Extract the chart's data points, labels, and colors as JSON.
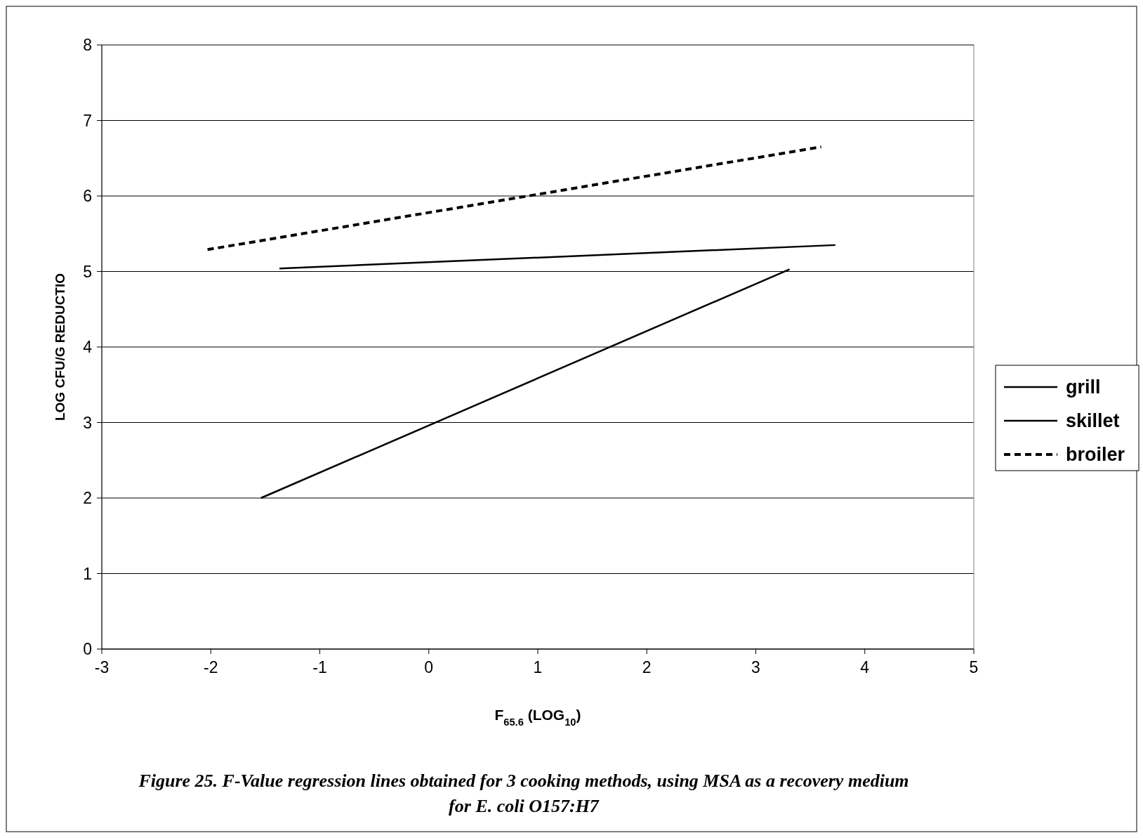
{
  "chart_data": {
    "type": "line",
    "xlabel": "F$_{65.6}$ (LOG$_{10}$)",
    "ylabel": "LOG CFU/G REDUCTIO",
    "xlim": [
      -3,
      5
    ],
    "xticks": [
      -3,
      -2,
      -1,
      0,
      1,
      2,
      3,
      4,
      5
    ],
    "ylim": [
      0,
      8
    ],
    "yticks": [
      0,
      1,
      2,
      3,
      4,
      5,
      6,
      7,
      8
    ],
    "grid": "y",
    "legend": "right",
    "marker": "none",
    "series": [
      {
        "name": "grill",
        "color": "#000000",
        "line_style": "solid",
        "x": [
          -1.37,
          3.73
        ],
        "values": [
          5.04,
          5.35
        ]
      },
      {
        "name": "skillet",
        "color": "#000000",
        "line_style": "solid",
        "x": [
          -1.54,
          3.31
        ],
        "values": [
          2.0,
          5.03
        ]
      },
      {
        "name": "broiler",
        "color": "#000000",
        "line_style": "dashed",
        "x": [
          -2.03,
          3.6
        ],
        "values": [
          5.29,
          6.65
        ]
      }
    ],
    "annotations": [
      "Figure 25.  F-Value regression lines obtained for 3 cooking methods, using MSA as a recovery medium for E. coli O157:H7"
    ]
  }
}
